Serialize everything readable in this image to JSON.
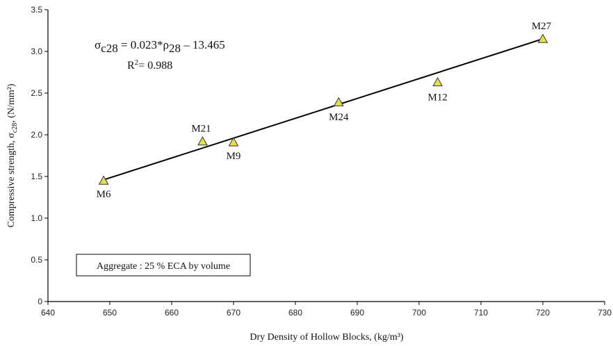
{
  "chart_data": {
    "type": "scatter",
    "xlabel": "Dry Density of Hollow Blocks, (kg/m³)",
    "ylabel": {
      "main": "Compressive strength, σ",
      "sub": "c28",
      "tail": ", (N/mm²)"
    },
    "xlim": [
      640,
      730
    ],
    "ylim": [
      0,
      3.5
    ],
    "xticks": [
      "640",
      "650",
      "660",
      "670",
      "680",
      "690",
      "700",
      "710",
      "720",
      "730"
    ],
    "yticks": [
      "0",
      "0.5",
      "1.0",
      "1.5",
      "2.0",
      "2.5",
      "3.0",
      "3.5"
    ],
    "grid": false,
    "points": [
      {
        "label": "M6",
        "x": 649,
        "y": 1.45
      },
      {
        "label": "M21",
        "x": 665,
        "y": 1.92
      },
      {
        "label": "M9",
        "x": 670,
        "y": 1.91
      },
      {
        "label": "M24",
        "x": 687,
        "y": 2.39
      },
      {
        "label": "M12",
        "x": 703,
        "y": 2.63
      },
      {
        "label": "M27",
        "x": 720,
        "y": 3.15
      }
    ],
    "trendline": {
      "x": [
        649,
        720
      ],
      "y": [
        1.46,
        3.15
      ]
    },
    "equation": {
      "sigma": "σ",
      "sigma_sub": "c28",
      "mid": " = 0.023*ρ",
      "rho_sub": "28",
      "tail": " – 13.465"
    },
    "r2": {
      "base": "R",
      "sup": "2",
      "tail": "= 0.988"
    },
    "annotation": "Aggregate : 25 % ECA by volume",
    "colors": {
      "marker_fill": "#e8e04a",
      "marker_stroke": "#333333",
      "line": "#000000"
    }
  }
}
